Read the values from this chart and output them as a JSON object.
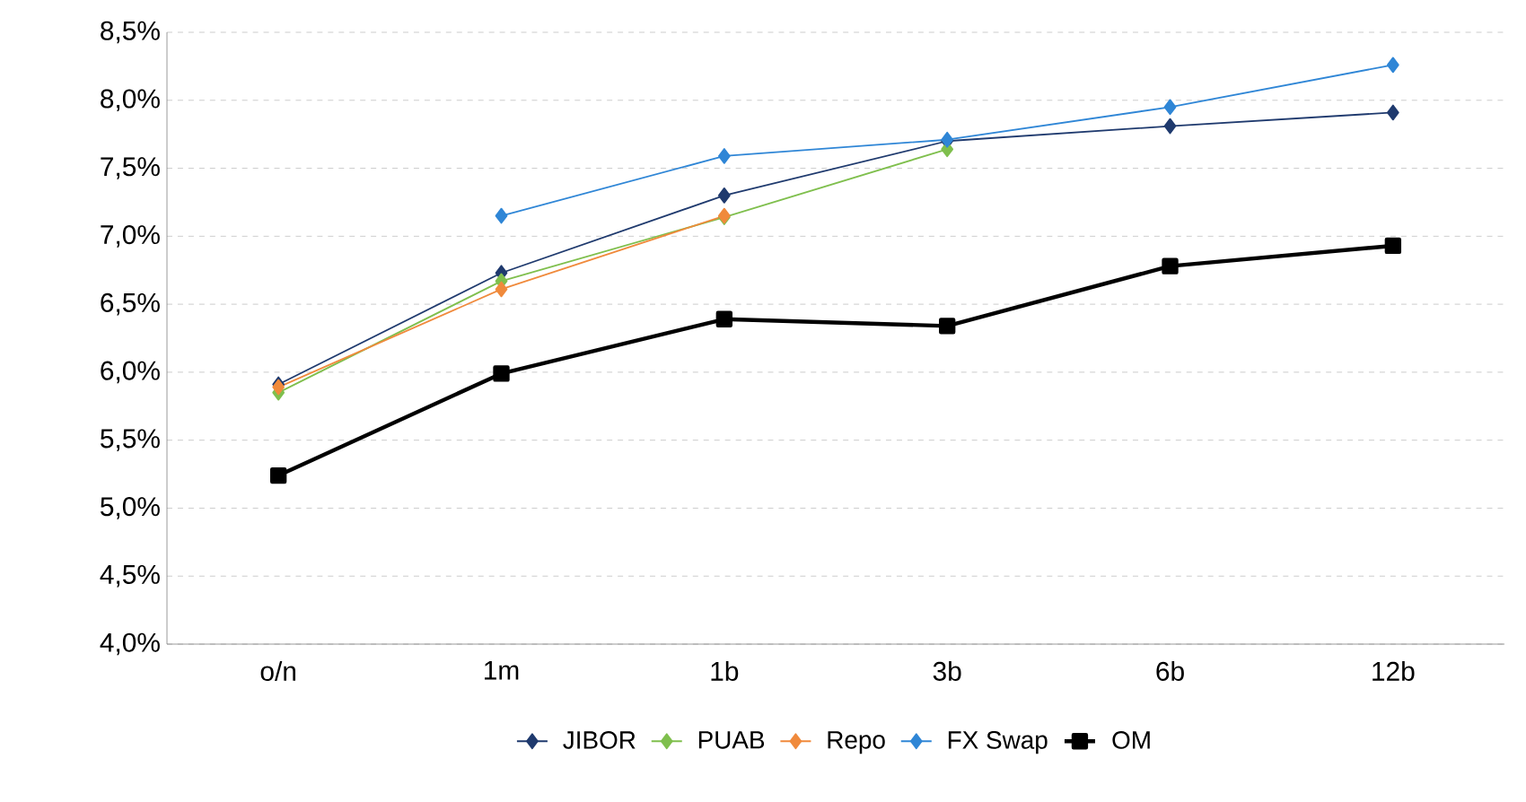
{
  "chart_data": {
    "type": "line",
    "categories": [
      "o/n",
      "1m",
      "1b",
      "3b",
      "6b",
      "12b"
    ],
    "series": [
      {
        "name": "JIBOR",
        "color": "#1f3a6e",
        "marker": "diamond",
        "values": [
          5.91,
          6.73,
          7.3,
          7.7,
          7.81,
          7.91
        ]
      },
      {
        "name": "PUAB",
        "color": "#7fbf4d",
        "marker": "diamond",
        "values": [
          5.85,
          6.67,
          7.14,
          7.64,
          null,
          null
        ]
      },
      {
        "name": "Repo",
        "color": "#f08a3c",
        "marker": "diamond",
        "values": [
          5.89,
          6.61,
          7.15,
          null,
          null,
          null
        ]
      },
      {
        "name": "FX Swap",
        "color": "#2f86d6",
        "marker": "diamond",
        "values": [
          null,
          7.15,
          7.59,
          7.71,
          7.95,
          8.26
        ]
      },
      {
        "name": "OM",
        "color": "#000000",
        "marker": "square",
        "values": [
          5.24,
          5.99,
          6.39,
          6.34,
          6.78,
          6.93
        ]
      }
    ],
    "ylim": [
      4.0,
      8.5
    ],
    "yticks": [
      {
        "value": 4.0,
        "label": "4,0%"
      },
      {
        "value": 4.5,
        "label": "4,5%"
      },
      {
        "value": 5.0,
        "label": "5,0%"
      },
      {
        "value": 5.5,
        "label": "5,5%"
      },
      {
        "value": 6.0,
        "label": "6,0%"
      },
      {
        "value": 6.5,
        "label": "6,5%"
      },
      {
        "value": 7.0,
        "label": "7,0%"
      },
      {
        "value": 7.5,
        "label": "7,5%"
      },
      {
        "value": 8.0,
        "label": "8,0%"
      },
      {
        "value": 8.5,
        "label": "8,5%"
      }
    ],
    "grid": "y",
    "legend": "bottom",
    "line_style": "solid"
  }
}
